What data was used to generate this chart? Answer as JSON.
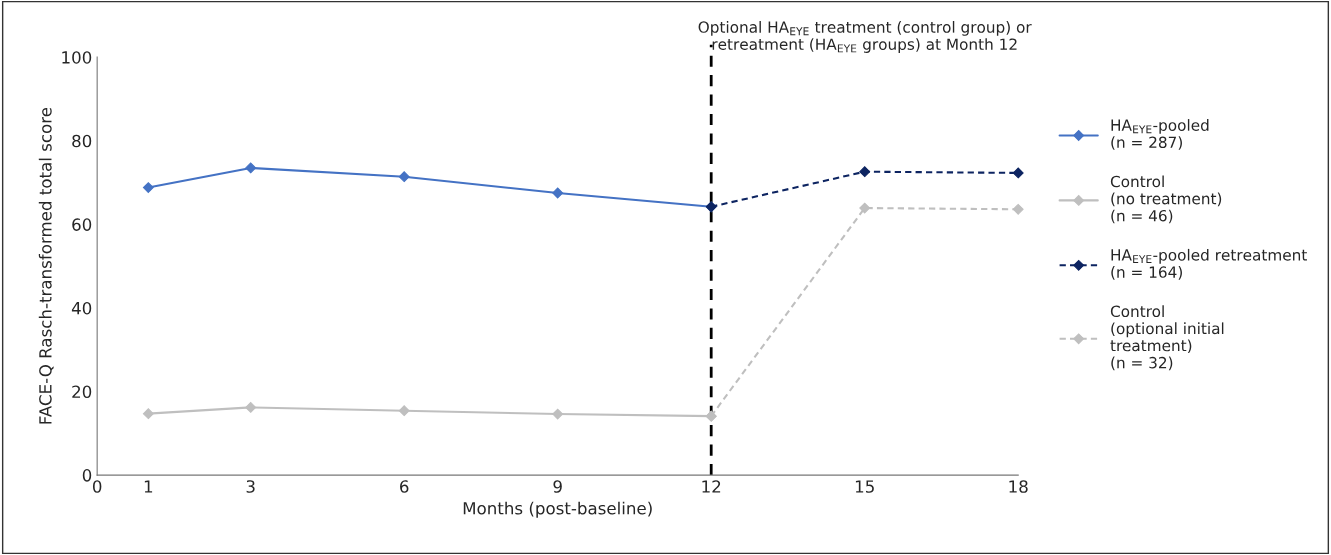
{
  "chart_data": {
    "type": "line",
    "xlabel": "Months (post-baseline)",
    "ylabel": "FACE-Q Rasch-transformed total score",
    "xlim": [
      0,
      18
    ],
    "xticks": [
      0,
      1,
      3,
      6,
      9,
      12,
      15,
      18
    ],
    "ylim": [
      0,
      100
    ],
    "yticks": [
      0,
      20,
      40,
      60,
      80,
      100
    ],
    "grid": false,
    "legend": "right",
    "marker": "diamond",
    "series": [
      {
        "name": "HA$_{EYE}$-pooled\n(n = 287)",
        "color": "#4472c4",
        "line_style": "solid",
        "x": [
          1,
          3,
          6,
          9,
          12
        ],
        "values": [
          68.8,
          73.5,
          71.4,
          67.5,
          64.2
        ]
      },
      {
        "name": "Control\n(no treatment)\n(n = 46)",
        "color": "#bfbfbf",
        "line_style": "solid",
        "x": [
          1,
          3,
          6,
          9,
          12
        ],
        "values": [
          14.7,
          16.2,
          15.4,
          14.6,
          14.1
        ]
      },
      {
        "name": "HA$_{EYE}$-pooled retreatment\n(n = 164)",
        "color": "#0d2461",
        "line_style": "dashed",
        "x": [
          12,
          15,
          18
        ],
        "values": [
          64.2,
          72.6,
          72.3
        ]
      },
      {
        "name": "Control\n(optional initial\ntreatment)\n(n = 32)",
        "color": "#bfbfbf",
        "line_style": "dashed",
        "x": [
          12,
          15,
          18
        ],
        "values": [
          14.1,
          63.9,
          63.6
        ]
      }
    ],
    "ref_lines": [
      {
        "axis": "x",
        "value": 12,
        "label": "Optional HA$_{EYE}$ treatment (control group) or\nretreatment (HA$_{EYE}$ groups) at Month 12",
        "color": "#000000",
        "line_style": "dashed"
      }
    ]
  }
}
